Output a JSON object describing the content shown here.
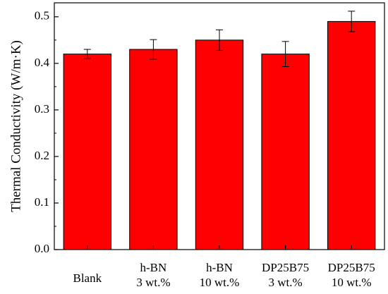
{
  "chart_data": {
    "type": "bar",
    "categories": [
      [
        "Blank"
      ],
      [
        "h-BN",
        "3 wt.%"
      ],
      [
        "h-BN",
        "10 wt.%"
      ],
      [
        "DP25B75",
        "3 wt.%"
      ],
      [
        "DP25B75",
        "10 wt.%"
      ]
    ],
    "values": [
      0.42,
      0.43,
      0.45,
      0.42,
      0.49
    ],
    "errors": [
      0.01,
      0.021,
      0.022,
      0.027,
      0.022
    ],
    "xlabel": "",
    "ylabel": "Thermal Conductivity (W/m·K)",
    "ylim": [
      0.0,
      0.53
    ],
    "yticks": [
      "0.0",
      "0.1",
      "0.2",
      "0.3",
      "0.4",
      "0.5"
    ],
    "grid": false,
    "legend": "none",
    "bar_color": "#ff0000",
    "edge_color": "#000000"
  }
}
